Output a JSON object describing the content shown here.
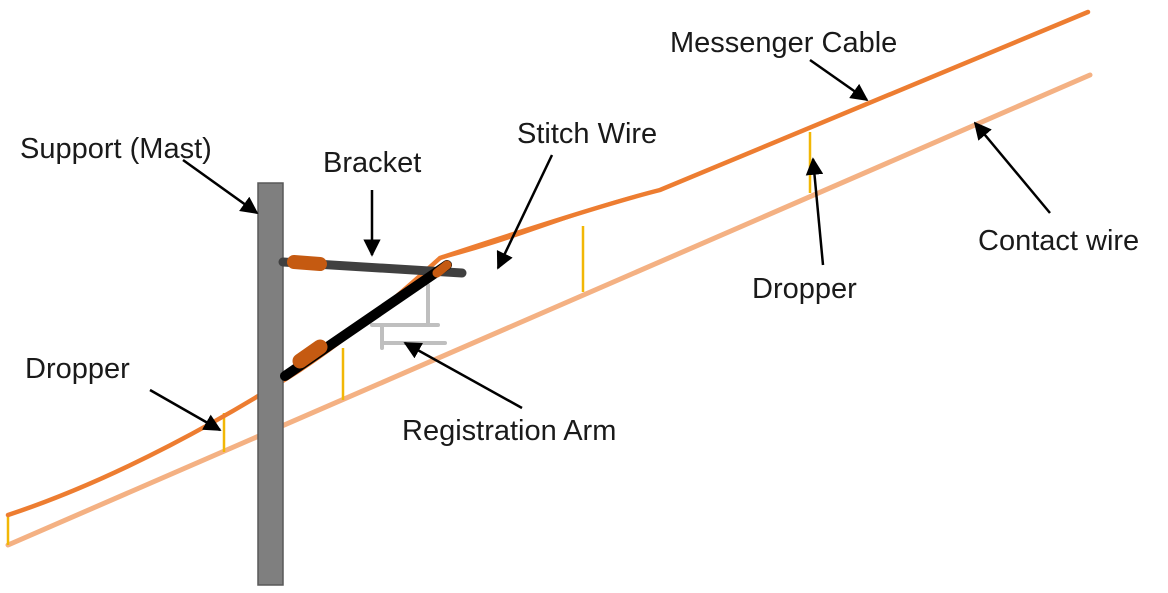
{
  "labels": {
    "messenger_cable": "Messenger Cable",
    "support_mast": "Support (Mast)",
    "stitch_wire": "Stitch Wire",
    "bracket": "Bracket",
    "contact_wire": "Contact wire",
    "dropper_right": "Dropper",
    "dropper_left": "Dropper",
    "registration_arm": "Registration Arm"
  },
  "colors": {
    "messenger_cable": "#ED7D31",
    "contact_wire": "#F4B183",
    "dropper": "#F2B705",
    "mast": "#7F7F7F",
    "bracket": "#404040",
    "insulator": "#C55A11",
    "registration_arm": "#BFBFBF",
    "arrow": "#000000"
  }
}
